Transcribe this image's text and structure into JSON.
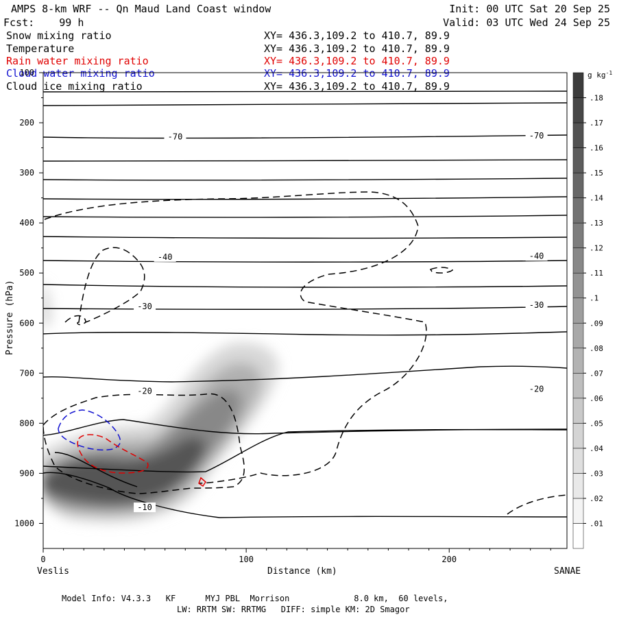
{
  "header": {
    "title": "AMPS 8-km WRF -- Qn Maud Land Coast window",
    "forecast": "Fcst:    99 h",
    "init": "Init: 00 UTC Sat 20 Sep 25",
    "valid": "Valid: 03 UTC Wed 24 Sep 25"
  },
  "fields": [
    {
      "name": "Snow mixing ratio",
      "xy": "XY= 436.3,109.2 to 410.7, 89.9",
      "color": "#000000"
    },
    {
      "name": "Temperature",
      "xy": "XY= 436.3,109.2 to 410.7, 89.9",
      "color": "#000000"
    },
    {
      "name": "Rain water mixing ratio",
      "xy": "XY= 436.3,109.2 to 410.7, 89.9",
      "color": "#e00000"
    },
    {
      "name": "Cloud water mixing ratio",
      "xy": "XY= 436.3,109.2 to 410.7, 89.9",
      "color": "#1010d0"
    },
    {
      "name": "Cloud ice mixing ratio",
      "xy": "XY= 436.3,109.2 to 410.7, 89.9",
      "color": "#000000"
    }
  ],
  "footer": {
    "line1": "Model Info: V4.3.3   KF      MYJ PBL  Morrison             8.0 km,  60 levels,",
    "line2": "LW: RRTM SW: RRTMG   DIFF: simple KM: 2D Smagor"
  },
  "chart_data": {
    "type": "cross-section",
    "xlabel": "Distance (km)",
    "ylabel": "Pressure (hPa)",
    "xlim": [
      0,
      258
    ],
    "ylim": [
      1050,
      100
    ],
    "x_ticks": [
      0,
      100,
      200
    ],
    "y_ticks": [
      100,
      200,
      300,
      400,
      500,
      600,
      700,
      800,
      900,
      1000
    ],
    "left_endpoint": "Veslis",
    "right_endpoint": "SANAE",
    "colorbar": {
      "unit": "g kg",
      "unit_exp": "-1",
      "levels": [
        0.01,
        0.02,
        0.03,
        0.04,
        0.05,
        0.06,
        0.07,
        0.08,
        0.09,
        0.1,
        0.11,
        0.12,
        0.13,
        0.14,
        0.15,
        0.16,
        0.17,
        0.18
      ],
      "level_labels": [
        ".01",
        ".02",
        ".03",
        ".04",
        ".05",
        ".06",
        ".07",
        ".08",
        ".09",
        ".1",
        ".11",
        ".12",
        ".13",
        ".14",
        ".15",
        ".16",
        ".17",
        ".18"
      ]
    },
    "temperature_labels": [
      {
        "text": "-70",
        "x": 65,
        "p": 228
      },
      {
        "text": "-70",
        "x": 243,
        "p": 226
      },
      {
        "text": "-40",
        "x": 60,
        "p": 468
      },
      {
        "text": "-40",
        "x": 243,
        "p": 466
      },
      {
        "text": "-30",
        "x": 50,
        "p": 567
      },
      {
        "text": "-30",
        "x": 243,
        "p": 564
      },
      {
        "text": "-20",
        "x": 50,
        "p": 736
      },
      {
        "text": "-20",
        "x": 243,
        "p": 732
      },
      {
        "text": "-10",
        "x": 50,
        "p": 968
      }
    ]
  }
}
